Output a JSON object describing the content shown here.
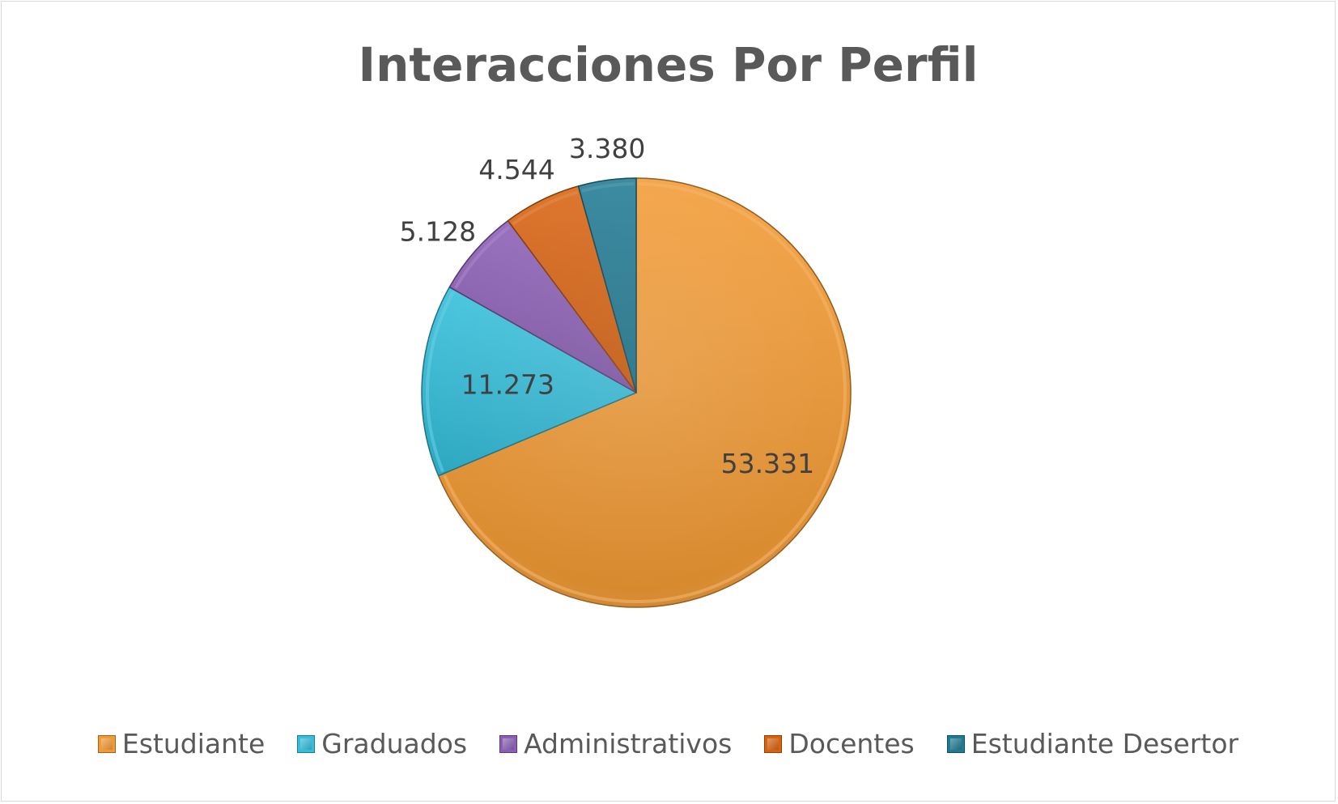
{
  "chart_data": {
    "type": "pie",
    "title": "Interacciones Por Perfil",
    "categories": [
      "Estudiante",
      "Graduados",
      "Administrativos",
      "Docentes",
      "Estudiante Desertor"
    ],
    "values": [
      53331,
      11273,
      5128,
      4544,
      3380
    ],
    "data_labels": [
      "53.331",
      "11.273",
      "5.128",
      "4.544",
      "3.380"
    ],
    "colors": [
      "#F39A33",
      "#33BEDB",
      "#8B5EB5",
      "#D9620F",
      "#1F7A93"
    ],
    "start_angle_deg": 0,
    "direction": "clockwise",
    "legend_position": "bottom"
  }
}
